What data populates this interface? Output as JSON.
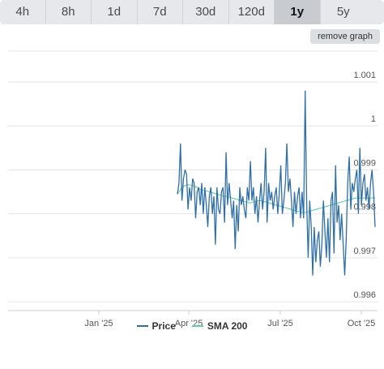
{
  "tabs": [
    {
      "label": "4h",
      "active": false
    },
    {
      "label": "8h",
      "active": false
    },
    {
      "label": "1d",
      "active": false
    },
    {
      "label": "7d",
      "active": false
    },
    {
      "label": "30d",
      "active": false
    },
    {
      "label": "120d",
      "active": false
    },
    {
      "label": "1y",
      "active": true
    },
    {
      "label": "5y",
      "active": false
    }
  ],
  "remove_graph_label": "remove graph",
  "legend": {
    "price_label": "Price",
    "sma_label": "SMA 200"
  },
  "colors": {
    "price": "#2f6fa8",
    "sma": "#5fd0a0",
    "grid": "#e6e6e6",
    "axis_text": "#555555"
  },
  "chart_data": {
    "type": "line",
    "title": "",
    "xlabel": "",
    "ylabel": "",
    "x_ticks": [
      "Jan '25",
      "Apr '25",
      "Jul '25",
      "Oct '25"
    ],
    "y_ticks": [
      "1.001",
      "1",
      "0.999",
      "0.998",
      "0.997",
      "0.996"
    ],
    "ylim": [
      0.9958,
      1.0017
    ],
    "grid": true,
    "legend": "bottom-center",
    "series": [
      {
        "name": "Price",
        "values": [
          0.99845,
          0.9987,
          0.9996,
          0.9983,
          0.9988,
          0.999,
          0.9989,
          0.9981,
          0.9986,
          0.9983,
          0.9988,
          0.9987,
          0.9979,
          0.9985,
          0.9986,
          0.9982,
          0.9987,
          0.998,
          0.9986,
          0.9982,
          0.9977,
          0.9984,
          0.9986,
          0.998,
          0.9984,
          0.9973,
          0.9986,
          0.9981,
          0.998,
          0.9985,
          0.9986,
          0.9978,
          0.9994,
          0.9982,
          0.9987,
          0.9983,
          0.9979,
          0.9983,
          0.9972,
          0.9982,
          0.9976,
          0.9986,
          0.9982,
          0.9984,
          0.9981,
          0.9979,
          0.9986,
          0.9983,
          0.9992,
          0.9983,
          0.9986,
          0.998,
          0.9984,
          0.9978,
          0.9983,
          0.9987,
          0.9981,
          0.9985,
          0.9995,
          0.9978,
          0.9987,
          0.9983,
          0.9985,
          0.9981,
          0.9984,
          0.9986,
          0.998,
          0.9985,
          0.9991,
          0.998,
          0.9983,
          0.9987,
          0.9996,
          0.9985,
          0.9988,
          0.9983,
          0.9977,
          0.9985,
          0.998,
          0.9984,
          0.9986,
          0.9979,
          0.9985,
          0.9979,
          1.0008,
          0.9983,
          0.997,
          0.9983,
          0.9977,
          0.9966,
          0.9977,
          0.9969,
          0.9974,
          0.9976,
          0.9968,
          0.9973,
          0.9983,
          0.9976,
          0.997,
          0.9979,
          0.9969,
          0.9983,
          0.9985,
          0.9971,
          0.9991,
          0.9978,
          0.9982,
          0.9974,
          0.998,
          0.9973,
          0.9966,
          0.9974,
          0.9987,
          0.9993,
          0.9981,
          0.9987,
          0.9985,
          0.9988,
          0.999,
          0.998,
          0.9995,
          0.9982,
          0.9987,
          0.9989,
          0.9983,
          0.9986,
          0.9981,
          0.9987,
          0.999,
          0.9985,
          0.9977
        ]
      },
      {
        "name": "SMA 200",
        "values": [
          0.99845,
          0.9985,
          0.99855,
          0.9986,
          0.99862,
          0.99864,
          0.99866,
          0.99866,
          0.99866,
          0.99865,
          0.99864,
          0.99863,
          0.99862,
          0.9986,
          0.99858,
          0.99856,
          0.99855,
          0.99854,
          0.99853,
          0.99852,
          0.99851,
          0.9985,
          0.99849,
          0.99848,
          0.99847,
          0.99846,
          0.99845,
          0.99844,
          0.99843,
          0.99842,
          0.99841,
          0.9984,
          0.9984,
          0.99839,
          0.99838,
          0.99837,
          0.99836,
          0.99835,
          0.99834,
          0.99833,
          0.99832,
          0.99831,
          0.9983,
          0.99829,
          0.99828,
          0.99827,
          0.99826,
          0.99825,
          0.99825,
          0.99826,
          0.99827,
          0.99828,
          0.99829,
          0.9983,
          0.9983,
          0.9983,
          0.99829,
          0.99828,
          0.99827,
          0.99826,
          0.99825,
          0.99824,
          0.99823,
          0.99822,
          0.99821,
          0.9982,
          0.99819,
          0.99818,
          0.99817,
          0.99816,
          0.99815,
          0.99814,
          0.99813,
          0.99812,
          0.99811,
          0.9981,
          0.99809,
          0.99808,
          0.99807,
          0.99806,
          0.99805,
          0.99804,
          0.99803,
          0.99803,
          0.99803,
          0.99804,
          0.99805,
          0.99806,
          0.99807,
          0.99808,
          0.99809,
          0.9981,
          0.99811,
          0.99812,
          0.99813,
          0.99814,
          0.99815,
          0.99816,
          0.99817,
          0.99818,
          0.99819,
          0.9982,
          0.99821,
          0.99822,
          0.99823,
          0.99824,
          0.99825,
          0.99826,
          0.99827,
          0.99828,
          0.99829,
          0.9983,
          0.99831,
          0.99832,
          0.99833,
          0.99834,
          0.99835,
          0.99836,
          0.99836,
          0.99836,
          0.99836,
          0.99836,
          0.99836,
          0.99836,
          0.99836,
          0.99836,
          0.99836,
          0.99836,
          0.99836,
          0.99836,
          0.99836
        ]
      }
    ]
  }
}
